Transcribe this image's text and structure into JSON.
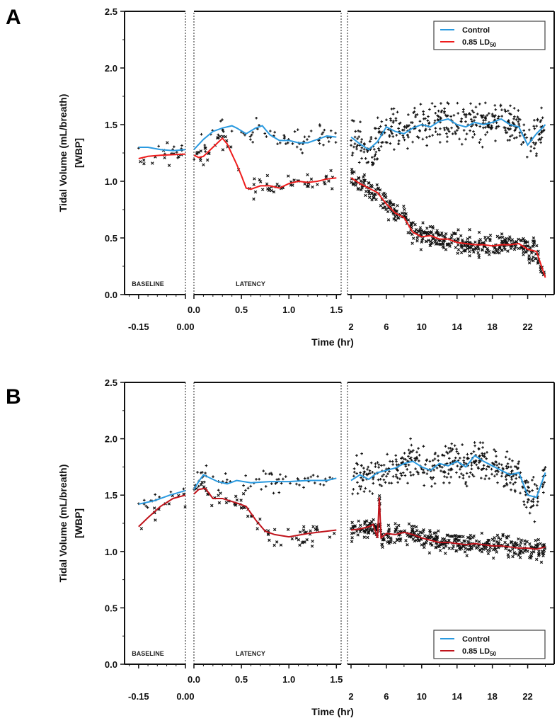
{
  "chart_data": [
    {
      "panel_label": "A",
      "type": "line",
      "ylabel": "Tidal Volume (mL/breath)",
      "ylabel2": "[WBP]",
      "xlabel": "Time (hr)",
      "ylim": [
        0,
        2.5
      ],
      "yticks": [
        "0.0",
        "0.5",
        "1.0",
        "1.5",
        "2.0",
        "2.5"
      ],
      "segments": [
        {
          "name": "BASELINE",
          "xlim": [
            -0.195,
            0
          ],
          "ticks": [
            -0.15,
            0.0
          ],
          "tick_labels": [
            "-0.15",
            "0.00"
          ]
        },
        {
          "name": "LATENCY",
          "xlim": [
            0,
            1.55
          ],
          "ticks": [
            0,
            0.5,
            1.0,
            1.5
          ],
          "tick_labels": [
            "0.0",
            "0.5",
            "1.0",
            "1.5"
          ]
        },
        {
          "name": "",
          "xlim": [
            1.6,
            25
          ],
          "ticks": [
            2,
            6,
            10,
            14,
            18,
            22
          ],
          "tick_labels": [
            "2",
            "6",
            "10",
            "14",
            "18",
            "22"
          ]
        }
      ],
      "legend_position": "top-right",
      "series": [
        {
          "name": "Control",
          "color": "#2a9ae0",
          "marker": "plus",
          "segments": [
            [
              [
                -0.15,
                1.3
              ],
              [
                -0.12,
                1.3
              ],
              [
                -0.08,
                1.28
              ],
              [
                -0.04,
                1.27
              ],
              [
                0,
                1.28
              ]
            ],
            [
              [
                0,
                1.28
              ],
              [
                0.1,
                1.37
              ],
              [
                0.2,
                1.44
              ],
              [
                0.3,
                1.47
              ],
              [
                0.4,
                1.49
              ],
              [
                0.45,
                1.47
              ],
              [
                0.55,
                1.42
              ],
              [
                0.65,
                1.47
              ],
              [
                0.72,
                1.49
              ],
              [
                0.8,
                1.41
              ],
              [
                0.9,
                1.36
              ],
              [
                1.0,
                1.36
              ],
              [
                1.1,
                1.34
              ],
              [
                1.2,
                1.34
              ],
              [
                1.3,
                1.37
              ],
              [
                1.4,
                1.4
              ],
              [
                1.5,
                1.39
              ]
            ],
            [
              [
                2,
                1.39
              ],
              [
                3,
                1.33
              ],
              [
                4,
                1.28
              ],
              [
                5,
                1.35
              ],
              [
                6,
                1.48
              ],
              [
                7,
                1.44
              ],
              [
                8,
                1.42
              ],
              [
                9,
                1.47
              ],
              [
                10,
                1.5
              ],
              [
                11,
                1.48
              ],
              [
                12,
                1.53
              ],
              [
                13,
                1.55
              ],
              [
                14,
                1.5
              ],
              [
                15,
                1.48
              ],
              [
                16,
                1.52
              ],
              [
                17,
                1.5
              ],
              [
                18,
                1.52
              ],
              [
                19,
                1.55
              ],
              [
                20,
                1.5
              ],
              [
                21,
                1.48
              ],
              [
                22,
                1.32
              ],
              [
                23,
                1.42
              ],
              [
                24,
                1.5
              ]
            ]
          ]
        },
        {
          "name": "0.85 LD",
          "name_sub": "50",
          "color": "#ee1c1c",
          "marker": "cross",
          "segments": [
            [
              [
                -0.15,
                1.2
              ],
              [
                -0.12,
                1.22
              ],
              [
                -0.08,
                1.23
              ],
              [
                0,
                1.24
              ]
            ],
            [
              [
                0,
                1.23
              ],
              [
                0.05,
                1.21
              ],
              [
                0.1,
                1.22
              ],
              [
                0.2,
                1.3
              ],
              [
                0.3,
                1.38
              ],
              [
                0.35,
                1.33
              ],
              [
                0.45,
                1.15
              ],
              [
                0.5,
                1.05
              ],
              [
                0.55,
                0.94
              ],
              [
                0.6,
                0.93
              ],
              [
                0.7,
                0.96
              ],
              [
                0.8,
                0.96
              ],
              [
                0.9,
                0.94
              ],
              [
                1.0,
                0.98
              ],
              [
                1.1,
                1.0
              ],
              [
                1.2,
                0.99
              ],
              [
                1.3,
                1.0
              ],
              [
                1.4,
                1.02
              ],
              [
                1.5,
                1.03
              ]
            ],
            [
              [
                2,
                1.03
              ],
              [
                3,
                0.98
              ],
              [
                4,
                0.94
              ],
              [
                5,
                0.9
              ],
              [
                6,
                0.8
              ],
              [
                7,
                0.72
              ],
              [
                8,
                0.68
              ],
              [
                9,
                0.55
              ],
              [
                10,
                0.51
              ],
              [
                11,
                0.52
              ],
              [
                12,
                0.49
              ],
              [
                13,
                0.49
              ],
              [
                14,
                0.46
              ],
              [
                15,
                0.45
              ],
              [
                16,
                0.44
              ],
              [
                17,
                0.44
              ],
              [
                18,
                0.43
              ],
              [
                19,
                0.44
              ],
              [
                20,
                0.44
              ],
              [
                21,
                0.45
              ],
              [
                22,
                0.4
              ],
              [
                23,
                0.38
              ],
              [
                24,
                0.15
              ]
            ]
          ]
        }
      ]
    },
    {
      "panel_label": "B",
      "type": "line",
      "ylabel": "Tidal Volume (mL/breath)",
      "ylabel2": "[WBP]",
      "xlabel": "Time (hr)",
      "ylim": [
        0,
        2.5
      ],
      "yticks": [
        "0.0",
        "0.5",
        "1.0",
        "1.5",
        "2.0",
        "2.5"
      ],
      "segments": [
        {
          "name": "BASELINE",
          "xlim": [
            -0.195,
            0
          ],
          "ticks": [
            -0.15,
            0.0
          ],
          "tick_labels": [
            "-0.15",
            "0.00"
          ]
        },
        {
          "name": "LATENCY",
          "xlim": [
            0,
            1.55
          ],
          "ticks": [
            0,
            0.5,
            1.0,
            1.5
          ],
          "tick_labels": [
            "0.0",
            "0.5",
            "1.0",
            "1.5"
          ]
        },
        {
          "name": "",
          "xlim": [
            1.6,
            25
          ],
          "ticks": [
            2,
            6,
            10,
            14,
            18,
            22
          ],
          "tick_labels": [
            "2",
            "6",
            "10",
            "14",
            "18",
            "22"
          ]
        }
      ],
      "legend_position": "bottom-right",
      "series": [
        {
          "name": "Control",
          "color": "#2a9ae0",
          "marker": "plus",
          "segments": [
            [
              [
                -0.15,
                1.42
              ],
              [
                -0.1,
                1.45
              ],
              [
                -0.05,
                1.5
              ],
              [
                0,
                1.54
              ]
            ],
            [
              [
                0,
                1.55
              ],
              [
                0.05,
                1.62
              ],
              [
                0.1,
                1.68
              ],
              [
                0.15,
                1.66
              ],
              [
                0.25,
                1.62
              ],
              [
                0.35,
                1.6
              ],
              [
                0.45,
                1.63
              ],
              [
                0.6,
                1.61
              ],
              [
                0.8,
                1.62
              ],
              [
                1.0,
                1.62
              ],
              [
                1.2,
                1.63
              ],
              [
                1.4,
                1.63
              ],
              [
                1.5,
                1.65
              ]
            ],
            [
              [
                2,
                1.63
              ],
              [
                3,
                1.68
              ],
              [
                4,
                1.64
              ],
              [
                5,
                1.7
              ],
              [
                6,
                1.72
              ],
              [
                7,
                1.74
              ],
              [
                8,
                1.78
              ],
              [
                9,
                1.8
              ],
              [
                10,
                1.75
              ],
              [
                11,
                1.72
              ],
              [
                12,
                1.78
              ],
              [
                13,
                1.76
              ],
              [
                14,
                1.8
              ],
              [
                15,
                1.75
              ],
              [
                16,
                1.85
              ],
              [
                17,
                1.8
              ],
              [
                18,
                1.76
              ],
              [
                19,
                1.72
              ],
              [
                20,
                1.68
              ],
              [
                21,
                1.7
              ],
              [
                22,
                1.5
              ],
              [
                23,
                1.48
              ],
              [
                24,
                1.7
              ]
            ]
          ]
        },
        {
          "name": "0.85 LD",
          "name_sub": "50",
          "color": "#c0141c",
          "marker": "cross",
          "segments": [
            [
              [
                -0.15,
                1.22
              ],
              [
                -0.12,
                1.3
              ],
              [
                -0.08,
                1.4
              ],
              [
                -0.04,
                1.47
              ],
              [
                0,
                1.5
              ]
            ],
            [
              [
                0,
                1.51
              ],
              [
                0.05,
                1.55
              ],
              [
                0.12,
                1.56
              ],
              [
                0.2,
                1.47
              ],
              [
                0.3,
                1.47
              ],
              [
                0.45,
                1.43
              ],
              [
                0.55,
                1.4
              ],
              [
                0.65,
                1.28
              ],
              [
                0.75,
                1.18
              ],
              [
                0.85,
                1.15
              ],
              [
                1.0,
                1.13
              ],
              [
                1.2,
                1.16
              ],
              [
                1.4,
                1.18
              ],
              [
                1.5,
                1.19
              ]
            ],
            [
              [
                2,
                1.19
              ],
              [
                3,
                1.2
              ],
              [
                4,
                1.22
              ],
              [
                4.5,
                1.24
              ],
              [
                5,
                1.12
              ],
              [
                5.2,
                1.48
              ],
              [
                5.4,
                1.12
              ],
              [
                6,
                1.16
              ],
              [
                7,
                1.15
              ],
              [
                8,
                1.17
              ],
              [
                9,
                1.15
              ],
              [
                10,
                1.12
              ],
              [
                11,
                1.1
              ],
              [
                12,
                1.08
              ],
              [
                13,
                1.08
              ],
              [
                14,
                1.07
              ],
              [
                15,
                1.06
              ],
              [
                16,
                1.07
              ],
              [
                17,
                1.06
              ],
              [
                18,
                1.05
              ],
              [
                19,
                1.05
              ],
              [
                20,
                1.04
              ],
              [
                21,
                1.03
              ],
              [
                22,
                1.03
              ],
              [
                23,
                1.02
              ],
              [
                24,
                1.04
              ]
            ]
          ]
        }
      ]
    }
  ]
}
